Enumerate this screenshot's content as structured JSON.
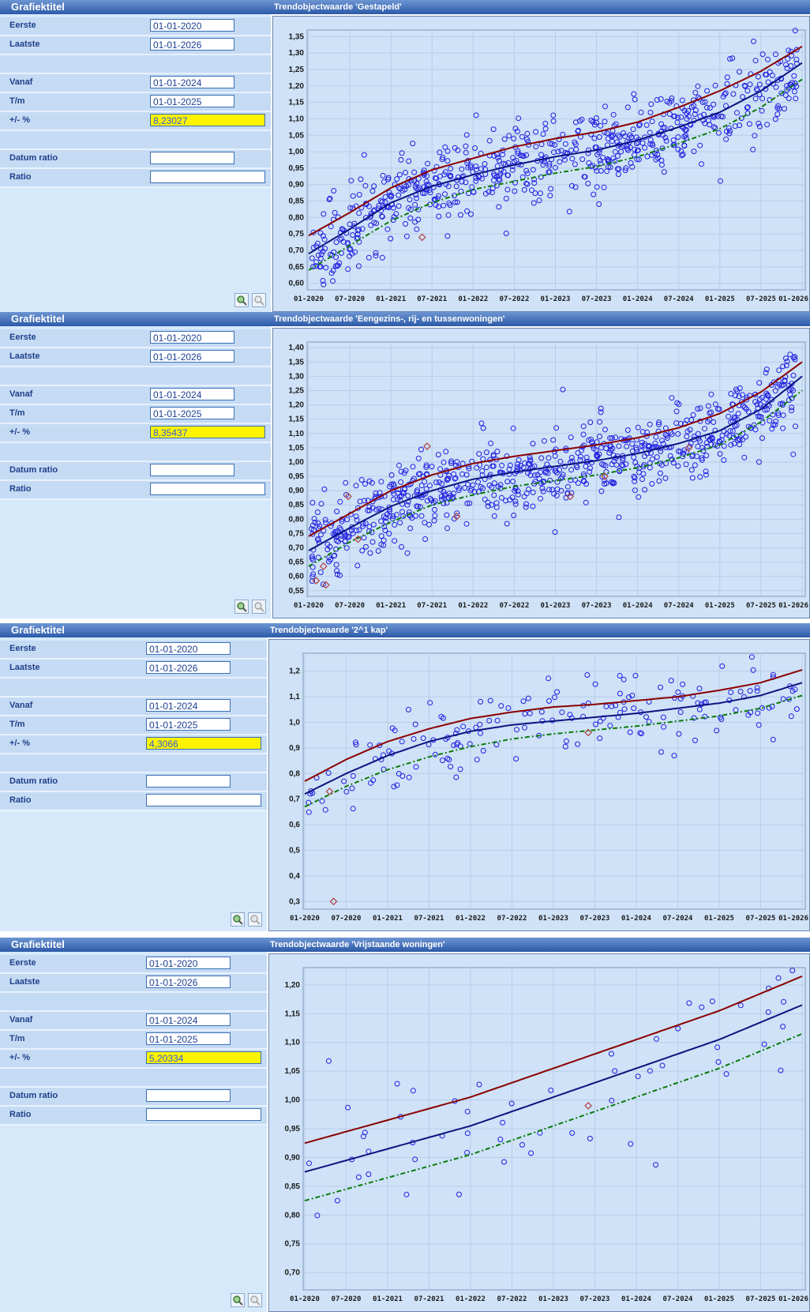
{
  "panels": [
    {
      "left_title": "Grafiektitel",
      "rows": [
        {
          "label": "Eerste",
          "value": "01-01-2020"
        },
        {
          "label": "Laatste",
          "value": "01-01-2026"
        },
        {
          "label": "",
          "value": null
        },
        {
          "label": "Vanaf",
          "value": "01-01-2024"
        },
        {
          "label": "T/m",
          "value": "01-01-2025"
        },
        {
          "label": "+/- %",
          "value": "8,23027",
          "highlight": true
        },
        {
          "label": "",
          "value": null
        },
        {
          "label": "Datum ratio",
          "value": ""
        },
        {
          "label": "Ratio",
          "value": ""
        }
      ],
      "chart_title": "Trendobjectwaarde 'Gestapeld'"
    },
    {
      "left_title": "Grafiektitel",
      "rows": [
        {
          "label": "Eerste",
          "value": "01-01-2020"
        },
        {
          "label": "Laatste",
          "value": "01-01-2026"
        },
        {
          "label": "",
          "value": null
        },
        {
          "label": "Vanaf",
          "value": "01-01-2024"
        },
        {
          "label": "T/m",
          "value": "01-01-2025"
        },
        {
          "label": "+/- %",
          "value": "8,35437",
          "highlight": true
        },
        {
          "label": "",
          "value": null
        },
        {
          "label": "Datum ratio",
          "value": ""
        },
        {
          "label": "Ratio",
          "value": ""
        }
      ],
      "chart_title": "Trendobjectwaarde 'Eengezins-, rij- en tussenwoningen'"
    },
    {
      "left_title": "Grafiektitel",
      "rows": [
        {
          "label": "Eerste",
          "value": "01-01-2020"
        },
        {
          "label": "Laatste",
          "value": "01-01-2026"
        },
        {
          "label": "",
          "value": null
        },
        {
          "label": "Vanaf",
          "value": "01-01-2024"
        },
        {
          "label": "T/m",
          "value": "01-01-2025"
        },
        {
          "label": "+/- %",
          "value": "4,3066",
          "highlight": true
        },
        {
          "label": "",
          "value": null
        },
        {
          "label": "Datum ratio",
          "value": ""
        },
        {
          "label": "Ratio",
          "value": ""
        }
      ],
      "chart_title": "Trendobjectwaarde '2^1 kap'"
    },
    {
      "left_title": "Grafiektitel",
      "rows": [
        {
          "label": "Eerste",
          "value": "01-01-2020"
        },
        {
          "label": "Laatste",
          "value": "01-01-2026"
        },
        {
          "label": "",
          "value": null
        },
        {
          "label": "Vanaf",
          "value": "01-01-2024"
        },
        {
          "label": "T/m",
          "value": "01-01-2025"
        },
        {
          "label": "+/- %",
          "value": "5,20334",
          "highlight": true
        },
        {
          "label": "",
          "value": null
        },
        {
          "label": "Datum ratio",
          "value": ""
        },
        {
          "label": "Ratio",
          "value": ""
        }
      ],
      "chart_title": "Trendobjectwaarde 'Vrijstaande woningen'"
    }
  ],
  "colors": {
    "points": "#1f1fe0",
    "upper": "#8b0000",
    "trend": "#0a1580",
    "lower": "#0c7a0c",
    "outlier": "#b04040",
    "plot_bg": "#cfe2f7"
  },
  "chart_data": [
    {
      "type": "scatter",
      "title": "Trendobjectwaarde 'Gestapeld'",
      "x_ticks": [
        "01-2020",
        "07-2020",
        "01-2021",
        "07-2021",
        "01-2022",
        "07-2022",
        "01-2023",
        "07-2023",
        "01-2024",
        "07-2024",
        "01-2025",
        "07-2025",
        "01-2026"
      ],
      "y_ticks": [
        "0,60",
        "0,65",
        "0,70",
        "0,75",
        "0,80",
        "0,85",
        "0,90",
        "0,95",
        "1,00",
        "1,05",
        "1,10",
        "1,15",
        "1,20",
        "1,25",
        "1,30",
        "1,35"
      ],
      "ylim": [
        0.58,
        1.37
      ],
      "point_count": 700,
      "trend": [
        0.69,
        0.765,
        0.845,
        0.895,
        0.93,
        0.96,
        0.985,
        1.005,
        1.035,
        1.075,
        1.12,
        1.185,
        1.27
      ],
      "upper": [
        0.745,
        0.815,
        0.89,
        0.945,
        0.98,
        1.015,
        1.04,
        1.06,
        1.09,
        1.135,
        1.185,
        1.245,
        1.32
      ],
      "lower": [
        0.64,
        0.715,
        0.79,
        0.845,
        0.885,
        0.91,
        0.935,
        0.955,
        0.985,
        1.025,
        1.07,
        1.135,
        1.22
      ],
      "spread": 0.06,
      "outliers": [
        [
          0.23,
          0.74
        ]
      ]
    },
    {
      "type": "scatter",
      "title": "Trendobjectwaarde 'Eengezins-, rij- en tussenwoningen'",
      "x_ticks": [
        "01-2020",
        "07-2020",
        "01-2021",
        "07-2021",
        "01-2022",
        "07-2022",
        "01-2023",
        "07-2023",
        "01-2024",
        "07-2024",
        "01-2025",
        "07-2025",
        "01-2026"
      ],
      "y_ticks": [
        "0,55",
        "0,60",
        "0,65",
        "0,70",
        "0,75",
        "0,80",
        "0,85",
        "0,90",
        "0,95",
        "1,00",
        "1,05",
        "1,10",
        "1,15",
        "1,20",
        "1,25",
        "1,30",
        "1,35",
        "1,40"
      ],
      "ylim": [
        0.53,
        1.42
      ],
      "point_count": 800,
      "trend": [
        0.69,
        0.77,
        0.845,
        0.9,
        0.94,
        0.965,
        0.985,
        1.005,
        1.03,
        1.065,
        1.11,
        1.185,
        1.3
      ],
      "upper": [
        0.74,
        0.82,
        0.9,
        0.955,
        0.995,
        1.02,
        1.04,
        1.06,
        1.085,
        1.12,
        1.17,
        1.245,
        1.35
      ],
      "lower": [
        0.635,
        0.72,
        0.79,
        0.85,
        0.885,
        0.915,
        0.935,
        0.955,
        0.98,
        1.015,
        1.06,
        1.14,
        1.25
      ],
      "spread": 0.07,
      "outliers": [
        [
          0.015,
          0.585
        ],
        [
          0.035,
          0.57
        ],
        [
          0.03,
          0.635
        ],
        [
          0.08,
          0.88
        ],
        [
          0.1,
          0.73
        ],
        [
          0.24,
          1.055
        ],
        [
          0.3,
          0.81
        ],
        [
          0.53,
          0.88
        ],
        [
          0.6,
          0.95
        ],
        [
          0.77,
          1.05
        ]
      ]
    },
    {
      "type": "scatter",
      "title": "Trendobjectwaarde '2^1 kap'",
      "x_ticks": [
        "01-2020",
        "07-2020",
        "01-2021",
        "07-2021",
        "01-2022",
        "07-2022",
        "01-2023",
        "07-2023",
        "01-2024",
        "07-2024",
        "01-2025",
        "07-2025",
        "01-2026"
      ],
      "y_ticks": [
        "0,3",
        "0,4",
        "0,5",
        "0,6",
        "0,7",
        "0,8",
        "0,9",
        "1,0",
        "1,1",
        "1,2"
      ],
      "ylim": [
        0.27,
        1.27
      ],
      "point_count": 180,
      "trend": [
        0.72,
        0.8,
        0.87,
        0.925,
        0.965,
        0.99,
        1.005,
        1.02,
        1.035,
        1.055,
        1.075,
        1.105,
        1.155
      ],
      "upper": [
        0.77,
        0.855,
        0.925,
        0.975,
        1.015,
        1.04,
        1.06,
        1.07,
        1.085,
        1.1,
        1.125,
        1.155,
        1.205
      ],
      "lower": [
        0.67,
        0.75,
        0.815,
        0.865,
        0.905,
        0.935,
        0.955,
        0.97,
        0.985,
        1.005,
        1.025,
        1.055,
        1.105
      ],
      "spread": 0.08,
      "outliers": [
        [
          0.058,
          0.3
        ],
        [
          0.05,
          0.73
        ],
        [
          0.57,
          0.96
        ]
      ]
    },
    {
      "type": "scatter",
      "title": "Trendobjectwaarde 'Vrijstaande woningen'",
      "x_ticks": [
        "01-2020",
        "07-2020",
        "01-2021",
        "07-2021",
        "01-2022",
        "07-2022",
        "01-2023",
        "07-2023",
        "01-2024",
        "07-2024",
        "01-2025",
        "07-2025",
        "01-2026"
      ],
      "y_ticks": [
        "0,70",
        "0,75",
        "0,80",
        "0,85",
        "0,90",
        "0,95",
        "1,00",
        "1,05",
        "1,10",
        "1,15",
        "1,20"
      ],
      "ylim": [
        0.67,
        1.23
      ],
      "point_count": 60,
      "trend": [
        0.875,
        0.895,
        0.915,
        0.935,
        0.955,
        0.98,
        1.005,
        1.03,
        1.055,
        1.08,
        1.105,
        1.135,
        1.165
      ],
      "upper": [
        0.925,
        0.945,
        0.965,
        0.985,
        1.005,
        1.03,
        1.055,
        1.08,
        1.105,
        1.13,
        1.155,
        1.185,
        1.215
      ],
      "lower": [
        0.825,
        0.845,
        0.865,
        0.885,
        0.905,
        0.93,
        0.955,
        0.98,
        1.005,
        1.03,
        1.055,
        1.085,
        1.115
      ],
      "spread": 0.07,
      "outliers": [
        [
          0.57,
          0.99
        ]
      ]
    }
  ]
}
